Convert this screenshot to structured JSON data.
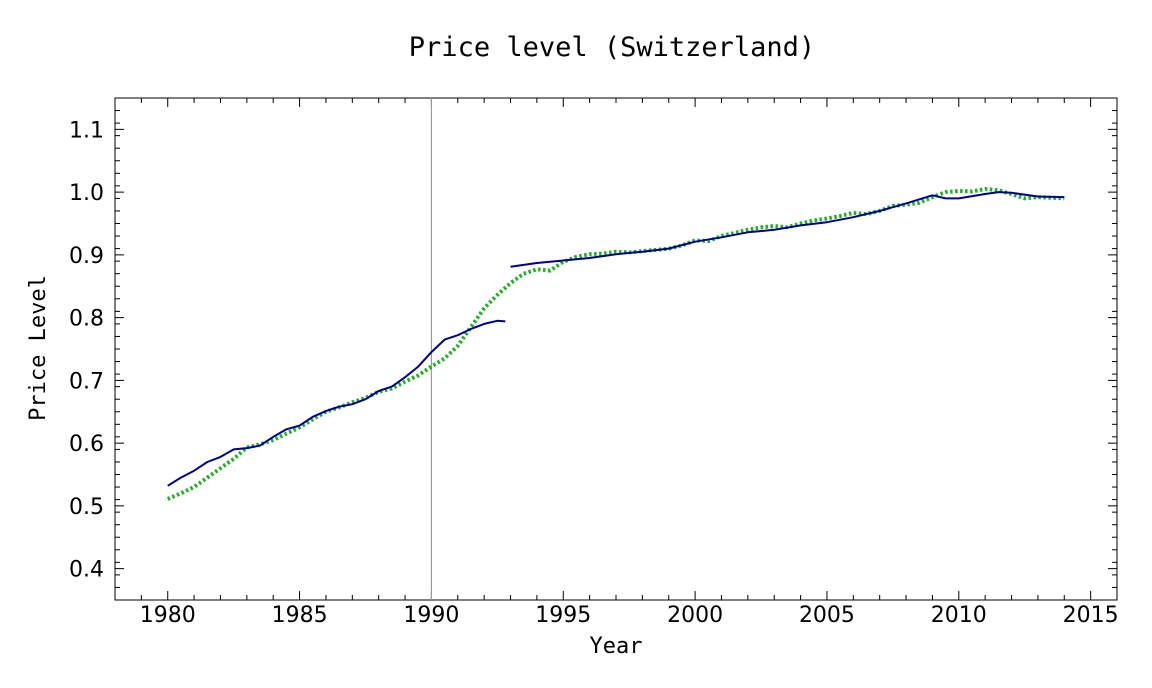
{
  "chart_data": {
    "type": "line",
    "title": "Price level (Switzerland)",
    "xlabel": "Year",
    "ylabel": "Price Level",
    "xlim": [
      1978,
      2016
    ],
    "ylim": [
      0.35,
      1.15
    ],
    "xticks": [
      "1980",
      "1985",
      "1990",
      "1995",
      "2000",
      "2005",
      "2010",
      "2015"
    ],
    "yticks": [
      "0.4",
      "0.5",
      "0.6",
      "0.7",
      "0.8",
      "0.9",
      "1.0",
      "1.1"
    ],
    "vertical_reference_line": 1990,
    "grid": false,
    "series": [
      {
        "color": "#00008b",
        "style": "solid",
        "segments": [
          {
            "x": [
              1980.0,
              1980.5,
              1981.0,
              1981.5,
              1982.0,
              1982.5,
              1983.0,
              1983.5,
              1984.0,
              1984.5,
              1985.0,
              1985.5,
              1986.0,
              1986.5,
              1987.0,
              1987.5,
              1988.0,
              1988.5,
              1989.0,
              1989.5,
              1990.0,
              1990.5,
              1991.0,
              1991.5,
              1992.0,
              1992.5,
              1992.8
            ],
            "y": [
              0.532,
              0.545,
              0.556,
              0.57,
              0.578,
              0.59,
              0.592,
              0.596,
              0.61,
              0.622,
              0.628,
              0.642,
              0.651,
              0.658,
              0.662,
              0.67,
              0.683,
              0.69,
              0.705,
              0.722,
              0.745,
              0.765,
              0.772,
              0.782,
              0.79,
              0.795,
              0.794
            ]
          },
          {
            "x": [
              1993.0,
              1994.0,
              1995.0,
              1996.0,
              1997.0,
              1998.0,
              1999.0,
              2000.0,
              2001.0,
              2002.0,
              2003.0,
              2004.0,
              2005.0,
              2006.0,
              2007.0,
              2008.0,
              2009.0,
              2009.5,
              2010.0,
              2011.0,
              2011.5,
              2012.0,
              2013.0,
              2014.0
            ],
            "y": [
              0.881,
              0.887,
              0.891,
              0.895,
              0.901,
              0.905,
              0.91,
              0.921,
              0.928,
              0.936,
              0.94,
              0.947,
              0.952,
              0.96,
              0.97,
              0.982,
              0.995,
              0.99,
              0.99,
              0.997,
              1.0,
              0.999,
              0.993,
              0.992
            ]
          }
        ]
      },
      {
        "color": "#22b022",
        "style": "dotted",
        "segments": [
          {
            "x": [
              1980.0,
              1980.5,
              1981.0,
              1981.5,
              1982.0,
              1982.5,
              1983.0,
              1983.5,
              1984.0,
              1984.5,
              1985.0,
              1985.5,
              1986.0,
              1986.5,
              1987.0,
              1987.5,
              1988.0,
              1988.5,
              1989.0,
              1989.5,
              1990.0,
              1990.5,
              1991.0,
              1991.5,
              1992.0,
              1992.5,
              1993.0,
              1993.5,
              1994.0,
              1994.5,
              1995.0,
              1995.5,
              1996.0,
              1996.5,
              1997.0,
              1997.5,
              1998.0,
              1998.5,
              1999.0,
              1999.5,
              2000.0,
              2000.5,
              2001.0,
              2001.5,
              2002.0,
              2002.5,
              2003.0,
              2003.5,
              2004.0,
              2004.5,
              2005.0,
              2005.5,
              2006.0,
              2006.5,
              2007.0,
              2007.5,
              2008.0,
              2008.5,
              2009.0,
              2009.5,
              2010.0,
              2010.5,
              2011.0,
              2011.5,
              2012.0,
              2012.5,
              2013.0,
              2013.5,
              2014.0
            ],
            "y": [
              0.511,
              0.52,
              0.53,
              0.545,
              0.56,
              0.575,
              0.593,
              0.598,
              0.605,
              0.615,
              0.625,
              0.638,
              0.65,
              0.657,
              0.665,
              0.672,
              0.682,
              0.687,
              0.698,
              0.708,
              0.722,
              0.735,
              0.755,
              0.785,
              0.815,
              0.836,
              0.855,
              0.87,
              0.877,
              0.875,
              0.889,
              0.897,
              0.901,
              0.902,
              0.905,
              0.904,
              0.906,
              0.908,
              0.91,
              0.915,
              0.923,
              0.922,
              0.93,
              0.935,
              0.94,
              0.944,
              0.946,
              0.944,
              0.95,
              0.955,
              0.958,
              0.962,
              0.967,
              0.965,
              0.97,
              0.978,
              0.98,
              0.983,
              0.992,
              1.0,
              1.002,
              1.001,
              1.005,
              1.003,
              0.997,
              0.99,
              0.992,
              0.991,
              0.99
            ]
          }
        ]
      }
    ]
  }
}
